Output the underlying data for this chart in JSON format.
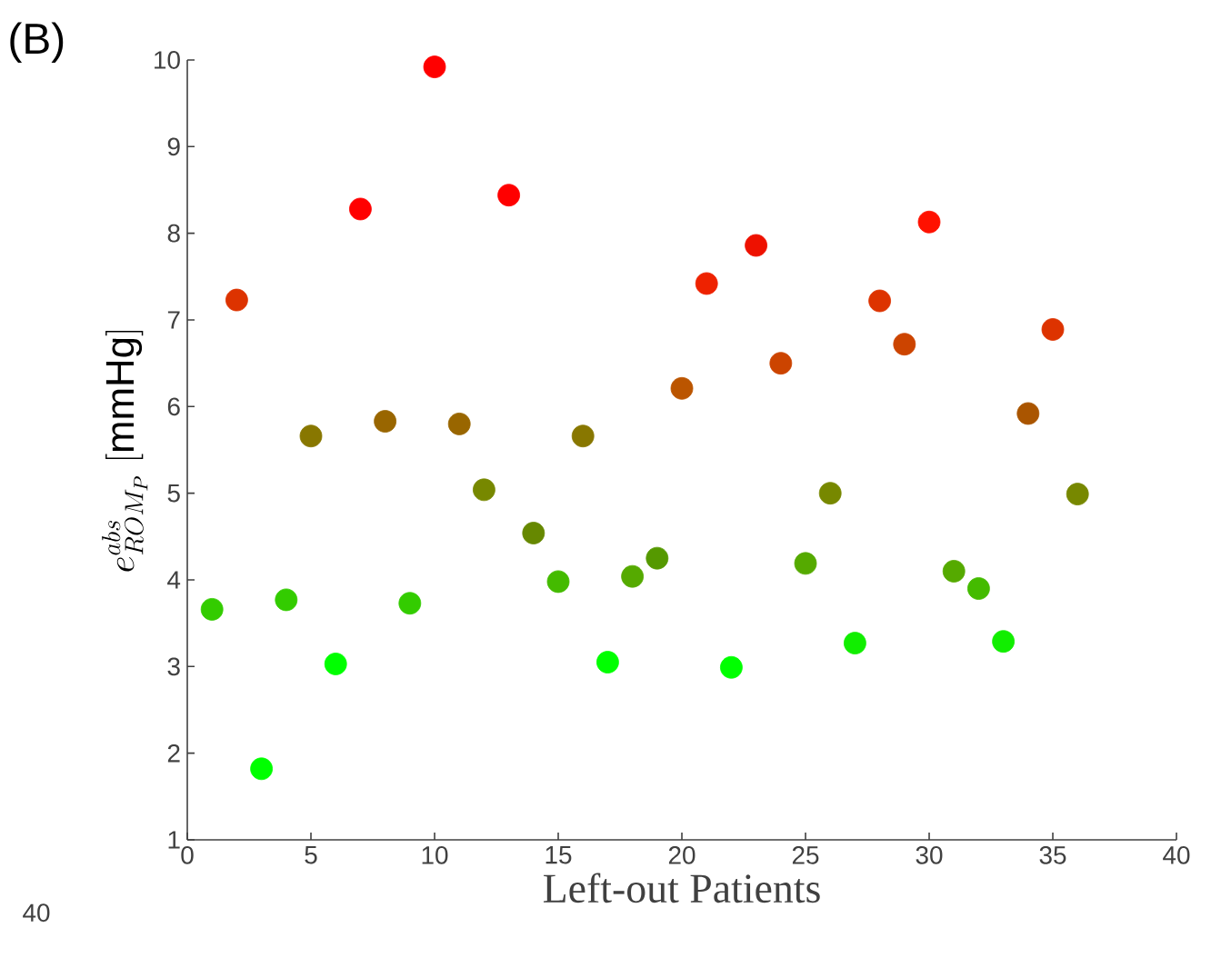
{
  "chart_data": {
    "type": "scatter",
    "ylabel": "e^{abs}_{ROM_P}\\ \\mathrm{[mmHg]}",
    "xlabel": "Left-out Patients",
    "annotations": [
      "(B)",
      "40"
    ],
    "x": [
      1,
      2,
      3,
      4,
      5,
      6,
      7,
      8,
      9,
      10,
      11,
      12,
      13,
      14,
      15,
      16,
      17,
      18,
      19,
      20,
      21,
      22,
      23,
      24,
      25,
      26,
      27,
      28,
      29,
      30,
      31,
      32,
      33,
      34,
      35,
      36
    ],
    "values": [
      3.66,
      7.23,
      1.82,
      3.77,
      5.66,
      3.03,
      8.28,
      5.83,
      3.73,
      9.92,
      5.8,
      5.04,
      8.44,
      4.54,
      3.98,
      5.66,
      3.05,
      4.04,
      4.25,
      6.21,
      7.42,
      2.99,
      7.86,
      6.5,
      4.19,
      5.0,
      3.27,
      7.22,
      6.72,
      8.13,
      4.1,
      3.9,
      3.29,
      5.92,
      6.89,
      4.99
    ],
    "colors": [
      "#33cc00",
      "#dd3300",
      "#00ff00",
      "#33cc00",
      "#887700",
      "#00ff00",
      "#ff0000",
      "#996600",
      "#33cc00",
      "#ff0000",
      "#996600",
      "#778800",
      "#ff0000",
      "#668800",
      "#44bb00",
      "#887700",
      "#00ff00",
      "#55aa00",
      "#559900",
      "#bb5500",
      "#ee2200",
      "#00ff00",
      "#ee1100",
      "#cc4400",
      "#55aa00",
      "#778800",
      "#11ee00",
      "#dd3300",
      "#cc4400",
      "#ff1100",
      "#55aa00",
      "#44bb00",
      "#11ee00",
      "#aa5500",
      "#dd3300",
      "#778800"
    ],
    "xlim": [
      0,
      40
    ],
    "xticks": [
      0,
      5,
      10,
      15,
      20,
      25,
      30,
      35,
      40
    ],
    "ylim": [
      1,
      10
    ],
    "yticks": [
      1,
      2,
      3,
      4,
      5,
      6,
      7,
      8,
      9,
      10
    ],
    "grid": false
  }
}
